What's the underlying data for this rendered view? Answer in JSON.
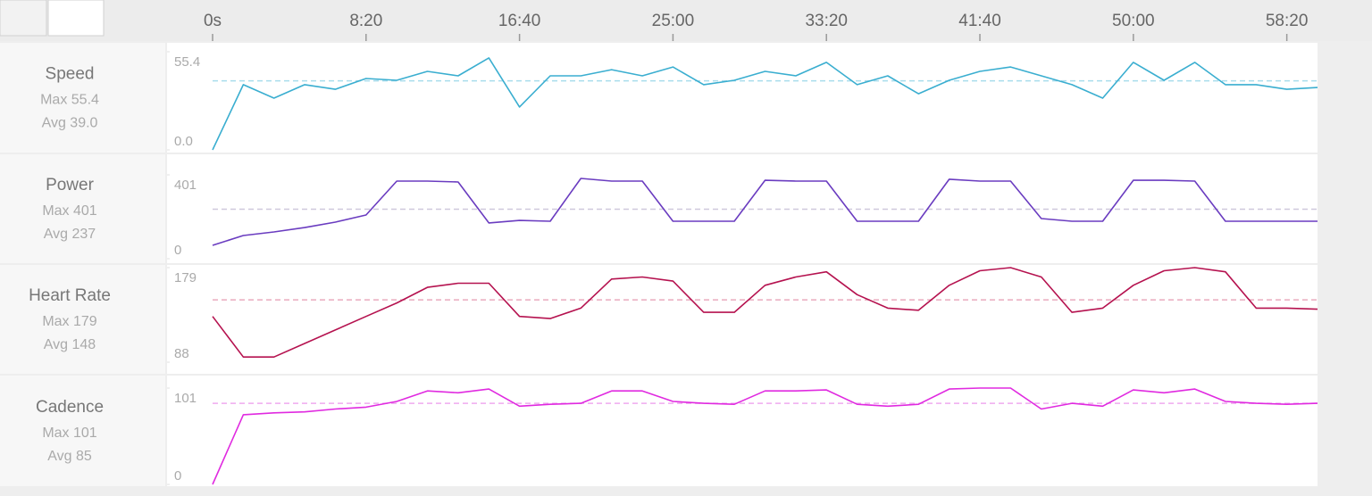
{
  "x_axis": {
    "xlim": [
      0,
      3600
    ],
    "xticks": [
      {
        "value": 0,
        "label": "0s"
      },
      {
        "value": 500,
        "label": "8:20"
      },
      {
        "value": 1000,
        "label": "16:40"
      },
      {
        "value": 1500,
        "label": "25:00"
      },
      {
        "value": 2000,
        "label": "33:20"
      },
      {
        "value": 2500,
        "label": "41:40"
      },
      {
        "value": 3000,
        "label": "50:00"
      },
      {
        "value": 3500,
        "label": "58:20"
      }
    ]
  },
  "chart_data": [
    {
      "type": "line",
      "title": "Speed",
      "stats": [
        "Max 55.4",
        "Avg 39.0"
      ],
      "color": "#3aaed0",
      "avg_color": "#a9dcec",
      "ylim": [
        0,
        55.4
      ],
      "yticks": [
        {
          "value": 0,
          "label": "0.0"
        },
        55.4
      ],
      "avg_line": 39.0,
      "x": [
        0,
        100,
        200,
        300,
        400,
        500,
        600,
        700,
        800,
        900,
        1000,
        1100,
        1200,
        1300,
        1400,
        1500,
        1600,
        1700,
        1800,
        1900,
        2000,
        2100,
        2200,
        2300,
        2400,
        2500,
        2600,
        2700,
        2800,
        2900,
        3000,
        3100,
        3200,
        3300,
        3400,
        3500,
        3600
      ],
      "values": [
        0,
        36.8,
        29.2,
        36.8,
        34.2,
        40.3,
        39.3,
        44.3,
        41.8,
        51.9,
        24.2,
        41.8,
        41.8,
        45.3,
        41.8,
        46.8,
        36.8,
        39.3,
        44.3,
        41.8,
        49.4,
        36.8,
        41.8,
        31.7,
        39.3,
        44.3,
        46.8,
        41.8,
        36.8,
        29.2,
        49.4,
        39.3,
        49.4,
        36.8,
        36.8,
        34.2,
        35.2
      ]
    },
    {
      "type": "line",
      "title": "Power",
      "stats": [
        "Max 401",
        "Avg 237"
      ],
      "color": "#6a3cc0",
      "avg_color": "#cfc8dc",
      "ylim": [
        0,
        401
      ],
      "yticks": [
        0,
        401
      ],
      "avg_line": 237,
      "x": [
        0,
        100,
        200,
        300,
        400,
        500,
        600,
        700,
        800,
        900,
        1000,
        1100,
        1200,
        1300,
        1400,
        1500,
        1600,
        1700,
        1800,
        1900,
        2000,
        2100,
        2200,
        2300,
        2400,
        2500,
        2600,
        2700,
        2800,
        2900,
        3000,
        3100,
        3200,
        3300,
        3400,
        3500,
        3600
      ],
      "values": [
        64,
        111,
        128,
        149,
        175,
        209,
        371,
        371,
        367,
        171,
        183,
        179,
        384,
        371,
        371,
        179,
        179,
        179,
        375,
        371,
        371,
        179,
        179,
        179,
        380,
        371,
        371,
        192,
        179,
        179,
        375,
        375,
        371,
        179,
        179,
        179,
        179
      ]
    },
    {
      "type": "line",
      "title": "Heart Rate",
      "stats": [
        "Max 179",
        "Avg 148"
      ],
      "color": "#b5124f",
      "avg_color": "#eaaabe",
      "ylim": [
        88,
        179
      ],
      "yticks": [
        88,
        179
      ],
      "avg_line": 148,
      "x": [
        0,
        100,
        200,
        300,
        400,
        500,
        600,
        700,
        800,
        900,
        1000,
        1100,
        1200,
        1300,
        1400,
        1500,
        1600,
        1700,
        1800,
        1900,
        2000,
        2100,
        2200,
        2300,
        2400,
        2500,
        2600,
        2700,
        2800,
        2900,
        3000,
        3100,
        3200,
        3300,
        3400,
        3500,
        3600
      ],
      "values": [
        132,
        93,
        93,
        106,
        119,
        132,
        145,
        160,
        164,
        164,
        132,
        130,
        140,
        168,
        170,
        166,
        136,
        136,
        162,
        170,
        175,
        153,
        140,
        138,
        162,
        176,
        179,
        170,
        136,
        140,
        162,
        176,
        179,
        175,
        140,
        140,
        139
      ]
    },
    {
      "type": "line",
      "title": "Cadence",
      "stats": [
        "Max 101",
        "Avg 85"
      ],
      "color": "#e02ae0",
      "avg_color": "#efaaef",
      "ylim": [
        0,
        101
      ],
      "yticks": [
        0,
        101
      ],
      "avg_line": 85,
      "x": [
        0,
        100,
        200,
        300,
        400,
        500,
        600,
        700,
        800,
        900,
        1000,
        1100,
        1200,
        1300,
        1400,
        1500,
        1600,
        1700,
        1800,
        1900,
        2000,
        2100,
        2200,
        2300,
        2400,
        2500,
        2600,
        2700,
        2800,
        2900,
        3000,
        3100,
        3200,
        3300,
        3400,
        3500,
        3600
      ],
      "values": [
        0,
        73,
        75,
        76,
        79,
        81,
        87,
        98,
        96,
        100,
        82,
        84,
        85,
        98,
        98,
        87,
        85,
        84,
        98,
        98,
        99,
        84,
        82,
        84,
        100,
        101,
        101,
        79,
        85,
        82,
        99,
        96,
        100,
        87,
        85,
        84,
        85
      ]
    }
  ]
}
